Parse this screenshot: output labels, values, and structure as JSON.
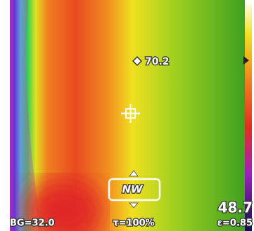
{
  "spot_reading": "70.2",
  "compass": "NW",
  "center_reading": "48.7",
  "status": {
    "background": "BG=32.0",
    "transmission": "τ=100%",
    "emissivity": "ε=0.85"
  }
}
